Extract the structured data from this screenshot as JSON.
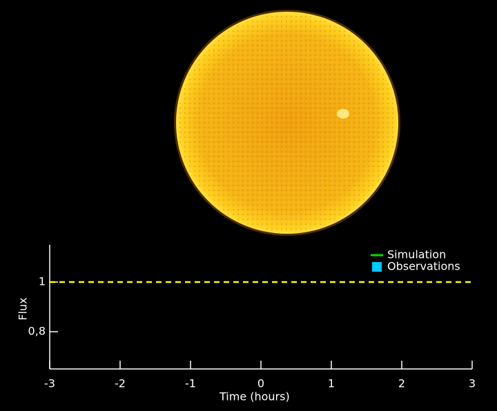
{
  "chart_data": {
    "type": "line",
    "xlabel": "Time (hours)",
    "ylabel": "Flux",
    "xlim": [
      -3,
      3
    ],
    "xticks": [
      -3,
      -2,
      -1,
      0,
      1,
      2,
      3
    ],
    "ylim": [
      0.65,
      1.15
    ],
    "yticks": [
      {
        "value": 0.8,
        "label": "0,8"
      },
      1
    ],
    "series": [
      {
        "name": "Simulation",
        "color": "#00e000",
        "values": []
      },
      {
        "name": "Observations",
        "color": "#00c8ff",
        "values": []
      }
    ],
    "reference_line": {
      "value": 1,
      "color": "#ffff00",
      "style": "dashed"
    },
    "legend": "upper right"
  }
}
